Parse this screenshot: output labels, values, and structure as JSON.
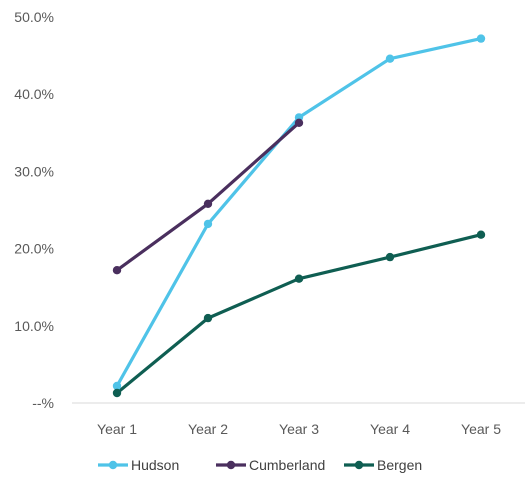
{
  "chart_data": {
    "type": "line",
    "title": "",
    "xlabel": "",
    "ylabel": "",
    "categories": [
      "Year 1",
      "Year 2",
      "Year 3",
      "Year 4",
      "Year 5"
    ],
    "ylim": [
      0,
      50
    ],
    "y_ticks": [
      {
        "value": 0,
        "label": "--%"
      },
      {
        "value": 10,
        "label": "10.0%"
      },
      {
        "value": 20,
        "label": "20.0%"
      },
      {
        "value": 30,
        "label": "30.0%"
      },
      {
        "value": 40,
        "label": "40.0%"
      },
      {
        "value": 50,
        "label": "50.0%"
      }
    ],
    "grid": false,
    "legend_position": "bottom",
    "series": [
      {
        "name": "Hudson",
        "color": "#4fc3e8",
        "values": [
          2.2,
          23.2,
          37.0,
          44.6,
          47.2
        ]
      },
      {
        "name": "Cumberland",
        "color": "#4a2f5e",
        "values": [
          17.2,
          25.8,
          36.3,
          null,
          null
        ]
      },
      {
        "name": "Bergen",
        "color": "#0f5e52",
        "values": [
          1.3,
          11.0,
          16.1,
          18.9,
          21.8
        ]
      }
    ]
  }
}
